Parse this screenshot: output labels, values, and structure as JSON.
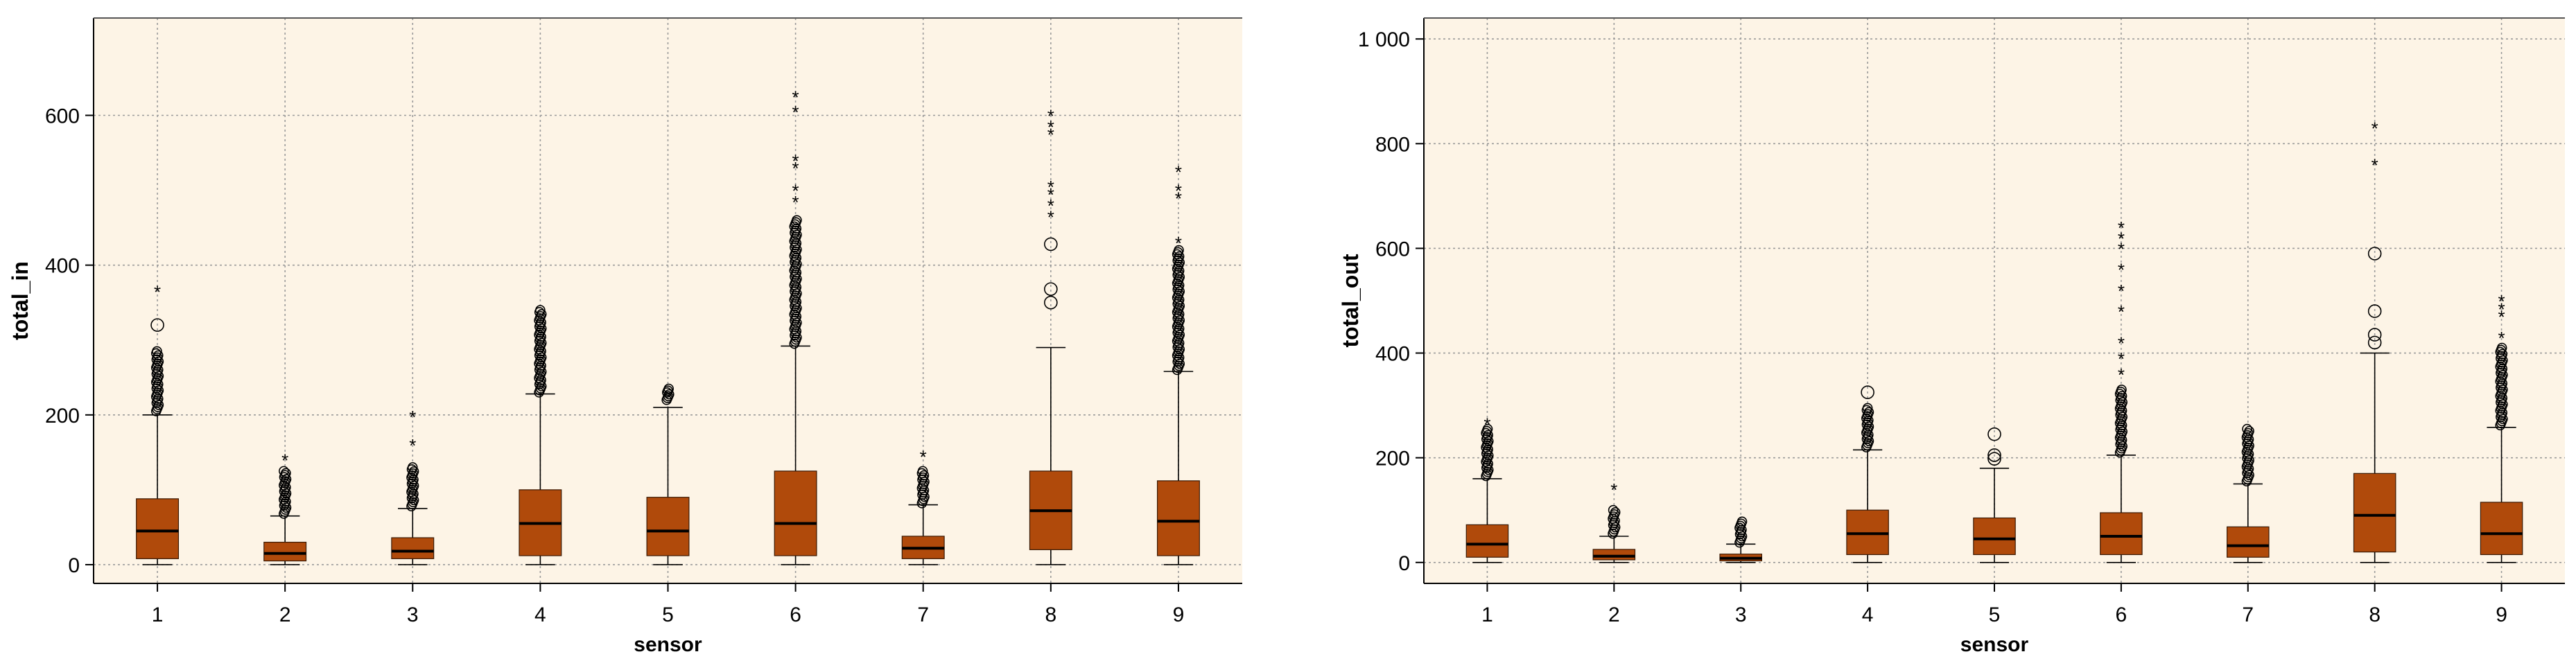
{
  "chart_data": [
    {
      "type": "boxplot",
      "xlabel": "sensor",
      "ylabel": "total_in",
      "ylim": [
        -25,
        730
      ],
      "yticks": [
        0,
        200,
        400,
        600
      ],
      "ytick_labels": [
        "0",
        "200",
        "400",
        "600"
      ],
      "grid": true,
      "colors": {
        "plot_bg": "#fdf4e6",
        "box": "#b04a0b",
        "grid": "#9a9a9a"
      },
      "categories": [
        "1",
        "2",
        "3",
        "4",
        "5",
        "6",
        "7",
        "8",
        "9"
      ],
      "boxes": [
        {
          "whisker_low": 0,
          "q1": 8,
          "median": 45,
          "q3": 88,
          "whisker_high": 200,
          "outlier_range": [
            205,
            285
          ],
          "circles": [
            320
          ],
          "stars": [
            365
          ]
        },
        {
          "whisker_low": 0,
          "q1": 5,
          "median": 15,
          "q3": 30,
          "whisker_high": 65,
          "outlier_range": [
            68,
            125
          ],
          "circles": [],
          "stars": [
            140
          ]
        },
        {
          "whisker_low": 0,
          "q1": 8,
          "median": 18,
          "q3": 36,
          "whisker_high": 75,
          "outlier_range": [
            78,
            130
          ],
          "circles": [],
          "stars": [
            160,
            198
          ]
        },
        {
          "whisker_low": 0,
          "q1": 12,
          "median": 55,
          "q3": 100,
          "whisker_high": 228,
          "outlier_range": [
            230,
            340
          ],
          "circles": [],
          "stars": []
        },
        {
          "whisker_low": 0,
          "q1": 12,
          "median": 45,
          "q3": 90,
          "whisker_high": 210,
          "outlier_range": [
            220,
            235
          ],
          "circles": [],
          "stars": []
        },
        {
          "whisker_low": 0,
          "q1": 12,
          "median": 55,
          "q3": 125,
          "whisker_high": 292,
          "outlier_range": [
            295,
            460
          ],
          "circles": [],
          "stars": [
            485,
            500,
            530,
            540,
            605,
            625
          ]
        },
        {
          "whisker_low": 0,
          "q1": 8,
          "median": 22,
          "q3": 38,
          "whisker_high": 80,
          "outlier_range": [
            82,
            125
          ],
          "circles": [],
          "stars": [
            145
          ]
        },
        {
          "whisker_low": 0,
          "q1": 20,
          "median": 72,
          "q3": 125,
          "whisker_high": 290,
          "outlier_range": [],
          "circles": [
            350,
            368,
            428
          ],
          "stars": [
            465,
            480,
            495,
            505,
            575,
            585,
            600
          ]
        },
        {
          "whisker_low": 0,
          "q1": 12,
          "median": 58,
          "q3": 112,
          "whisker_high": 258,
          "outlier_range": [
            260,
            420
          ],
          "circles": [],
          "stars": [
            430,
            490,
            500,
            525
          ]
        }
      ]
    },
    {
      "type": "boxplot",
      "xlabel": "sensor",
      "ylabel": "total_out",
      "ylim": [
        -40,
        1040
      ],
      "yticks": [
        0,
        200,
        400,
        600,
        800,
        1000
      ],
      "ytick_labels": [
        "0",
        "200",
        "400",
        "600",
        "800",
        "1 000"
      ],
      "grid": true,
      "colors": {
        "plot_bg": "#fdf4e6",
        "box": "#b04a0b",
        "grid": "#9a9a9a"
      },
      "categories": [
        "1",
        "2",
        "3",
        "4",
        "5",
        "6",
        "7",
        "8",
        "9"
      ],
      "boxes": [
        {
          "whisker_low": 0,
          "q1": 10,
          "median": 35,
          "q3": 72,
          "whisker_high": 160,
          "outlier_range": [
            165,
            255
          ],
          "circles": [],
          "stars": [
            265
          ]
        },
        {
          "whisker_low": 0,
          "q1": 5,
          "median": 12,
          "q3": 25,
          "whisker_high": 50,
          "outlier_range": [
            55,
            100
          ],
          "circles": [],
          "stars": [
            140
          ]
        },
        {
          "whisker_low": 0,
          "q1": 3,
          "median": 8,
          "q3": 16,
          "whisker_high": 35,
          "outlier_range": [
            38,
            78
          ],
          "circles": [],
          "stars": []
        },
        {
          "whisker_low": 0,
          "q1": 15,
          "median": 55,
          "q3": 100,
          "whisker_high": 215,
          "outlier_range": [
            220,
            295
          ],
          "circles": [
            325
          ],
          "stars": []
        },
        {
          "whisker_low": 0,
          "q1": 15,
          "median": 45,
          "q3": 85,
          "whisker_high": 180,
          "outlier_range": [],
          "circles": [
            198,
            205,
            245
          ],
          "stars": []
        },
        {
          "whisker_low": 0,
          "q1": 15,
          "median": 50,
          "q3": 95,
          "whisker_high": 205,
          "outlier_range": [
            210,
            330
          ],
          "circles": [],
          "stars": [
            360,
            390,
            420,
            480,
            520,
            560,
            600,
            620,
            640
          ]
        },
        {
          "whisker_low": 0,
          "q1": 10,
          "median": 32,
          "q3": 68,
          "whisker_high": 150,
          "outlier_range": [
            155,
            255
          ],
          "circles": [],
          "stars": []
        },
        {
          "whisker_low": 0,
          "q1": 20,
          "median": 90,
          "q3": 170,
          "whisker_high": 400,
          "outlier_range": [],
          "circles": [
            420,
            435,
            480,
            590
          ],
          "stars": [
            760,
            830
          ]
        },
        {
          "whisker_low": 0,
          "q1": 15,
          "median": 55,
          "q3": 115,
          "whisker_high": 258,
          "outlier_range": [
            262,
            410
          ],
          "circles": [],
          "stars": [
            430,
            470,
            485,
            500
          ]
        }
      ]
    }
  ]
}
